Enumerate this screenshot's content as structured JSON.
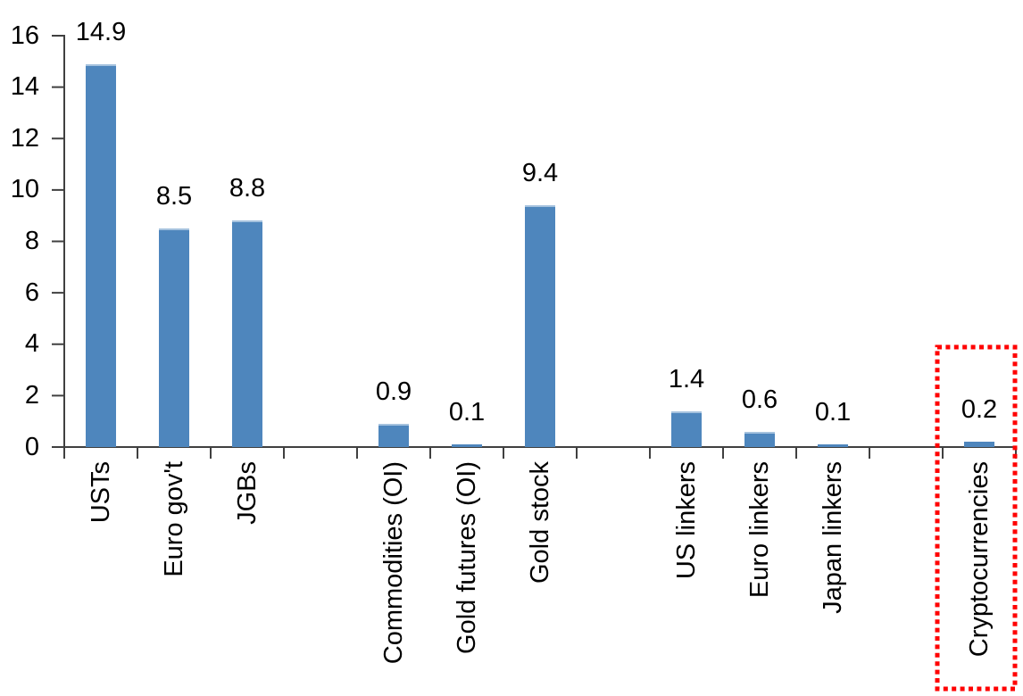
{
  "chart_data": {
    "type": "bar",
    "title": "",
    "xlabel": "",
    "ylabel": "",
    "ylim": [
      0,
      16
    ],
    "yticks": [
      0,
      2,
      4,
      6,
      8,
      10,
      12,
      14,
      16
    ],
    "grid": false,
    "legend": null,
    "bar_color": "#4E86BD",
    "bar_top_edge_color": "#A5C2DE",
    "axis_color": "#404040",
    "text_color": "#000000",
    "categories": [
      "USTs",
      "Euro gov't",
      "JGBs",
      "Commodities (OI)",
      "Gold futures (OI)",
      "Gold stock",
      "US linkers",
      "Euro linkers",
      "Japan linkers",
      "Cryptocurrencies"
    ],
    "values": [
      14.9,
      8.5,
      8.8,
      0.9,
      0.1,
      9.4,
      1.4,
      0.6,
      0.1,
      0.2
    ],
    "data_labels": [
      "14.9",
      "8.5",
      "8.8",
      "0.9",
      "0.1",
      "9.4",
      "1.4",
      "0.6",
      "0.1",
      "0.2"
    ],
    "slots": [
      {
        "label": "USTs",
        "value": 14.9,
        "data_label": "14.9"
      },
      {
        "label": "Euro gov't",
        "value": 8.5,
        "data_label": "8.5"
      },
      {
        "label": "JGBs",
        "value": 8.8,
        "data_label": "8.8"
      },
      {
        "spacer": true
      },
      {
        "label": "Commodities (OI)",
        "value": 0.9,
        "data_label": "0.9"
      },
      {
        "label": "Gold futures (OI)",
        "value": 0.1,
        "data_label": "0.1"
      },
      {
        "label": "Gold stock",
        "value": 9.4,
        "data_label": "9.4"
      },
      {
        "spacer": true
      },
      {
        "label": "US linkers",
        "value": 1.4,
        "data_label": "1.4"
      },
      {
        "label": "Euro linkers",
        "value": 0.6,
        "data_label": "0.6"
      },
      {
        "label": "Japan linkers",
        "value": 0.1,
        "data_label": "0.1"
      },
      {
        "spacer": true
      },
      {
        "label": "Cryptocurrencies",
        "value": 0.2,
        "data_label": "0.2",
        "highlighted": true
      }
    ],
    "highlight": {
      "target": "Cryptocurrencies",
      "shape": "dotted-rectangle",
      "color": "#FF0000"
    }
  }
}
